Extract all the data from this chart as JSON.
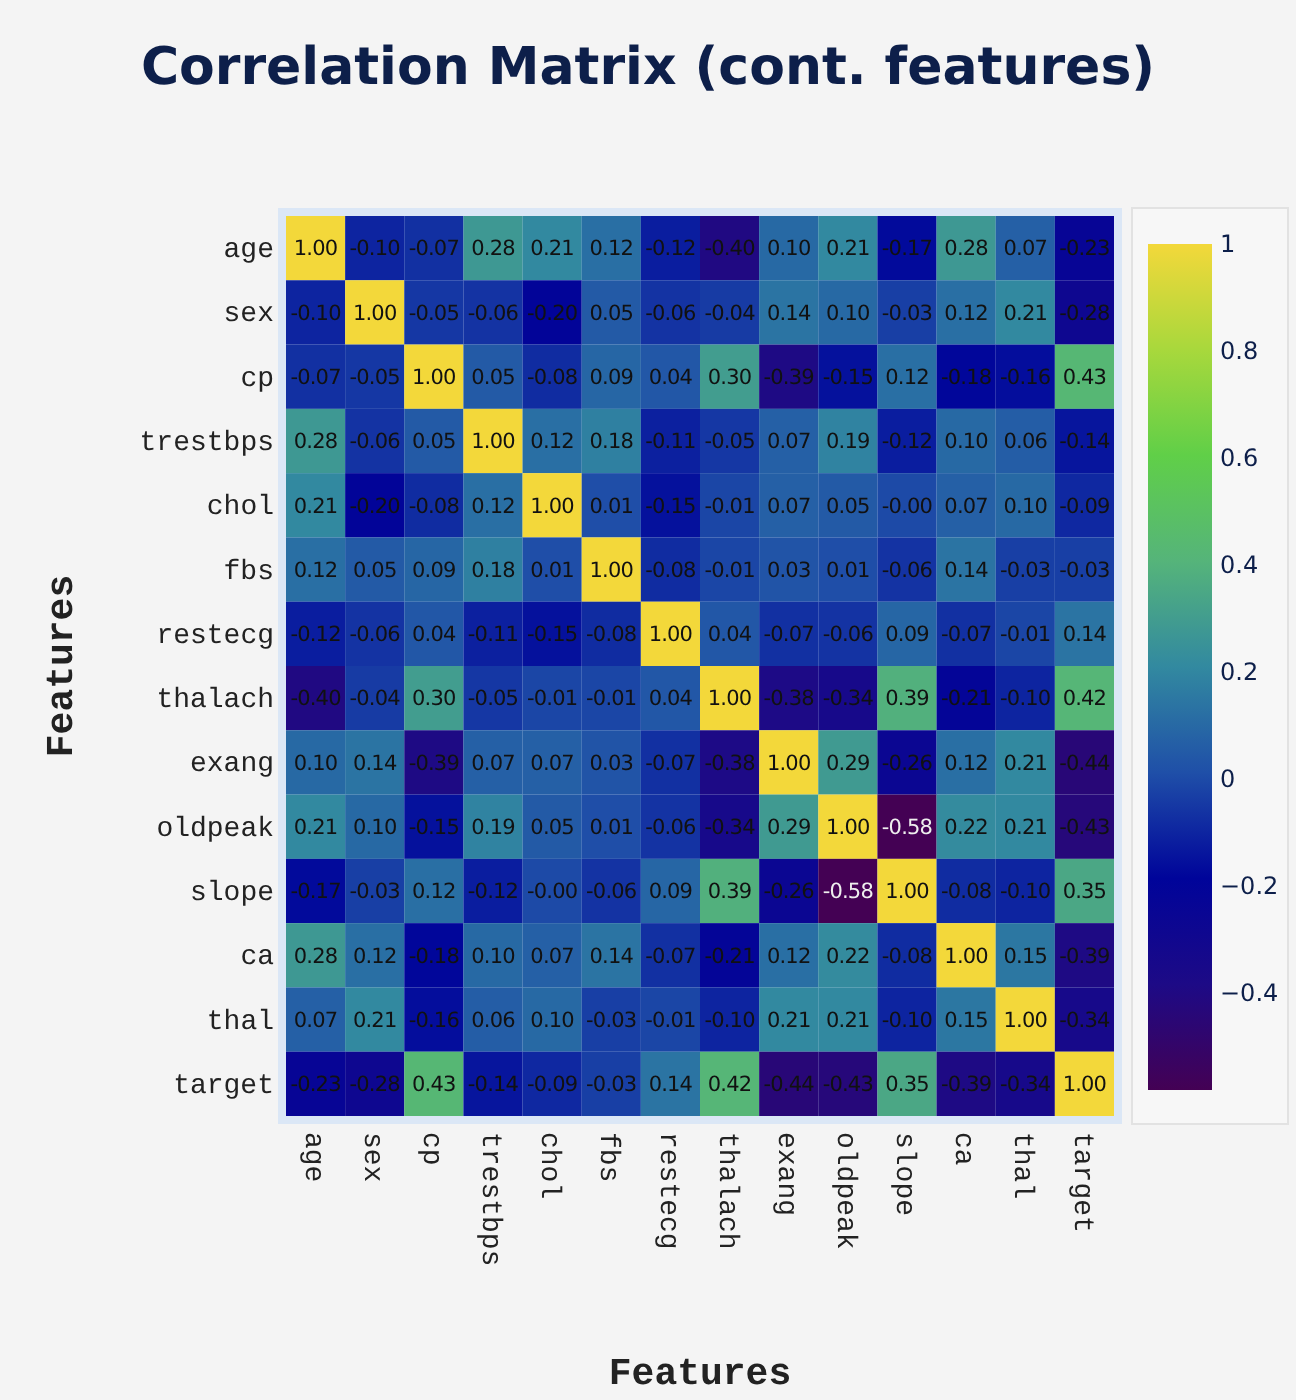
{
  "chart_data": {
    "type": "heatmap",
    "title": "Correlation Matrix (cont. features)",
    "xlabel": "Features",
    "ylabel": "Features",
    "categories": [
      "age",
      "sex",
      "cp",
      "trestbps",
      "chol",
      "fbs",
      "restecg",
      "thalach",
      "exang",
      "oldpeak",
      "slope",
      "ca",
      "thal",
      "target"
    ],
    "y_categories": [
      "age",
      "sex",
      "cp",
      "trestbps",
      "chol",
      "fbs",
      "restecg",
      "thalach",
      "exang",
      "oldpeak",
      "slope",
      "ca",
      "thal",
      "target"
    ],
    "cells": [
      [
        1.0,
        -0.1,
        -0.07,
        0.28,
        0.21,
        0.12,
        -0.12,
        -0.4,
        0.1,
        0.21,
        -0.17,
        0.28,
        0.07,
        -0.23
      ],
      [
        -0.1,
        1.0,
        -0.05,
        -0.06,
        -0.2,
        0.05,
        -0.06,
        -0.04,
        0.14,
        0.1,
        -0.03,
        0.12,
        0.21,
        -0.28
      ],
      [
        -0.07,
        -0.05,
        1.0,
        0.05,
        -0.08,
        0.09,
        0.04,
        0.3,
        -0.39,
        -0.15,
        0.12,
        -0.18,
        -0.16,
        0.43
      ],
      [
        0.28,
        -0.06,
        0.05,
        1.0,
        0.12,
        0.18,
        -0.11,
        -0.05,
        0.07,
        0.19,
        -0.12,
        0.1,
        0.06,
        -0.14
      ],
      [
        0.21,
        -0.2,
        -0.08,
        0.12,
        1.0,
        0.01,
        -0.15,
        -0.01,
        0.07,
        0.05,
        -0.0,
        0.07,
        0.1,
        -0.09
      ],
      [
        0.12,
        0.05,
        0.09,
        0.18,
        0.01,
        1.0,
        -0.08,
        -0.01,
        0.03,
        0.01,
        -0.06,
        0.14,
        -0.03,
        -0.03
      ],
      [
        -0.12,
        -0.06,
        0.04,
        -0.11,
        -0.15,
        -0.08,
        1.0,
        0.04,
        -0.07,
        -0.06,
        0.09,
        -0.07,
        -0.01,
        0.14
      ],
      [
        -0.4,
        -0.04,
        0.3,
        -0.05,
        -0.01,
        -0.01,
        0.04,
        1.0,
        -0.38,
        -0.34,
        0.39,
        -0.21,
        -0.1,
        0.42
      ],
      [
        0.1,
        0.14,
        -0.39,
        0.07,
        0.07,
        0.03,
        -0.07,
        -0.38,
        1.0,
        0.29,
        -0.26,
        0.12,
        0.21,
        -0.44
      ],
      [
        0.21,
        0.1,
        -0.15,
        0.19,
        0.05,
        0.01,
        -0.06,
        -0.34,
        0.29,
        1.0,
        -0.58,
        0.22,
        0.21,
        -0.43
      ],
      [
        -0.17,
        -0.03,
        0.12,
        -0.12,
        -0.0,
        -0.06,
        0.09,
        0.39,
        -0.26,
        -0.58,
        1.0,
        -0.08,
        -0.1,
        0.35
      ],
      [
        0.28,
        0.12,
        -0.18,
        0.1,
        0.07,
        0.14,
        -0.07,
        -0.21,
        0.12,
        0.22,
        -0.08,
        1.0,
        0.15,
        -0.39
      ],
      [
        0.07,
        0.21,
        -0.16,
        0.06,
        0.1,
        -0.03,
        -0.01,
        -0.1,
        0.21,
        0.21,
        -0.1,
        0.15,
        1.0,
        -0.34
      ],
      [
        -0.23,
        -0.28,
        0.43,
        -0.14,
        -0.09,
        -0.03,
        0.14,
        0.42,
        -0.44,
        -0.43,
        0.35,
        -0.39,
        -0.34,
        1.0
      ]
    ],
    "cell_labels": [
      [
        "1.00",
        "-0.10",
        "-0.07",
        "0.28",
        "0.21",
        "0.12",
        "-0.12",
        "-0.40",
        "0.10",
        "0.21",
        "-0.17",
        "0.28",
        "0.07",
        "-0.23"
      ],
      [
        "-0.10",
        "1.00",
        "-0.05",
        "-0.06",
        "-0.20",
        "0.05",
        "-0.06",
        "-0.04",
        "0.14",
        "0.10",
        "-0.03",
        "0.12",
        "0.21",
        "-0.28"
      ],
      [
        "-0.07",
        "-0.05",
        "1.00",
        "0.05",
        "-0.08",
        "0.09",
        "0.04",
        "0.30",
        "-0.39",
        "-0.15",
        "0.12",
        "-0.18",
        "-0.16",
        "0.43"
      ],
      [
        "0.28",
        "-0.06",
        "0.05",
        "1.00",
        "0.12",
        "0.18",
        "-0.11",
        "-0.05",
        "0.07",
        "0.19",
        "-0.12",
        "0.10",
        "0.06",
        "-0.14"
      ],
      [
        "0.21",
        "-0.20",
        "-0.08",
        "0.12",
        "1.00",
        "0.01",
        "-0.15",
        "-0.01",
        "0.07",
        "0.05",
        "-0.00",
        "0.07",
        "0.10",
        "-0.09"
      ],
      [
        "0.12",
        "0.05",
        "0.09",
        "0.18",
        "0.01",
        "1.00",
        "-0.08",
        "-0.01",
        "0.03",
        "0.01",
        "-0.06",
        "0.14",
        "-0.03",
        "-0.03"
      ],
      [
        "-0.12",
        "-0.06",
        "0.04",
        "-0.11",
        "-0.15",
        "-0.08",
        "1.00",
        "0.04",
        "-0.07",
        "-0.06",
        "0.09",
        "-0.07",
        "-0.01",
        "0.14"
      ],
      [
        "-0.40",
        "-0.04",
        "0.30",
        "-0.05",
        "-0.01",
        "-0.01",
        "0.04",
        "1.00",
        "-0.38",
        "-0.34",
        "0.39",
        "-0.21",
        "-0.10",
        "0.42"
      ],
      [
        "0.10",
        "0.14",
        "-0.39",
        "0.07",
        "0.07",
        "0.03",
        "-0.07",
        "-0.38",
        "1.00",
        "0.29",
        "-0.26",
        "0.12",
        "0.21",
        "-0.44"
      ],
      [
        "0.21",
        "0.10",
        "-0.15",
        "0.19",
        "0.05",
        "0.01",
        "-0.06",
        "-0.34",
        "0.29",
        "1.00",
        "-0.58",
        "0.22",
        "0.21",
        "-0.43"
      ],
      [
        "-0.17",
        "-0.03",
        "0.12",
        "-0.12",
        "-0.00",
        "-0.06",
        "0.09",
        "0.39",
        "-0.26",
        "-0.58",
        "1.00",
        "-0.08",
        "-0.10",
        "0.35"
      ],
      [
        "0.28",
        "0.12",
        "-0.18",
        "0.10",
        "0.07",
        "0.14",
        "-0.07",
        "-0.21",
        "0.12",
        "0.22",
        "-0.08",
        "1.00",
        "0.15",
        "-0.39"
      ],
      [
        "0.07",
        "0.21",
        "-0.16",
        "0.06",
        "0.10",
        "-0.03",
        "-0.01",
        "-0.10",
        "0.21",
        "0.21",
        "-0.10",
        "0.15",
        "1.00",
        "-0.34"
      ],
      [
        "-0.23",
        "-0.28",
        "0.43",
        "-0.14",
        "-0.09",
        "-0.03",
        "0.14",
        "0.42",
        "-0.44",
        "-0.43",
        "0.35",
        "-0.39",
        "-0.34",
        "1.00"
      ]
    ],
    "clim": [
      -0.58,
      1
    ],
    "cticks": [
      {
        "value": -0.4,
        "label": "−0.4"
      },
      {
        "value": -0.2,
        "label": "−0.2"
      },
      0,
      0.2,
      0.4,
      0.6,
      0.8,
      1
    ]
  }
}
